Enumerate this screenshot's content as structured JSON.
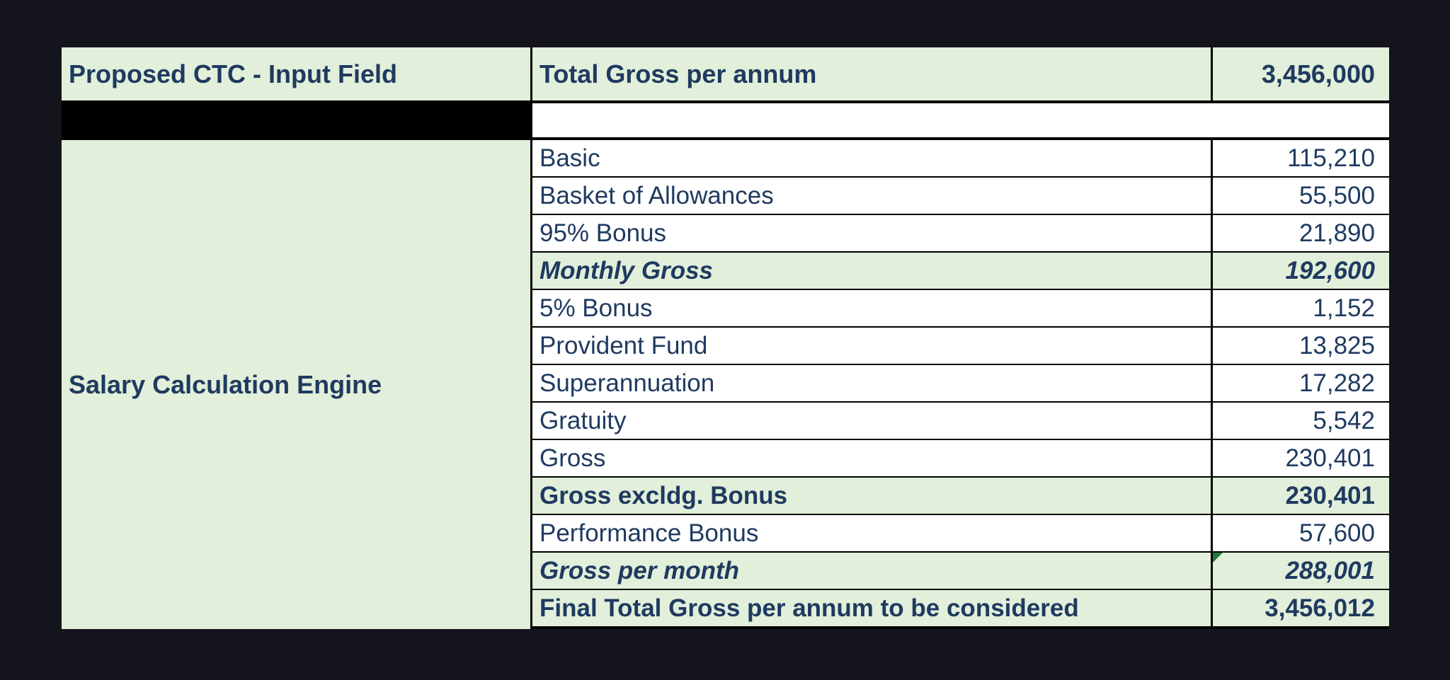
{
  "input": {
    "label": "Proposed CTC - Input Field",
    "field_label": "Total Gross per annum",
    "field_value": "3,456,000"
  },
  "engine": {
    "label": "Salary Calculation Engine",
    "rows": [
      {
        "label": "Basic",
        "value": "115,210",
        "style": "normal"
      },
      {
        "label": "Basket of Allowances",
        "value": "55,500",
        "style": "normal"
      },
      {
        "label": "95% Bonus",
        "value": "21,890",
        "style": "normal"
      },
      {
        "label": "Monthly Gross",
        "value": "192,600",
        "style": "bold-italic"
      },
      {
        "label": "5% Bonus",
        "value": "1,152",
        "style": "normal"
      },
      {
        "label": "Provident Fund",
        "value": "13,825",
        "style": "normal"
      },
      {
        "label": "Superannuation",
        "value": "17,282",
        "style": "normal"
      },
      {
        "label": "Gratuity",
        "value": "5,542",
        "style": "normal"
      },
      {
        "label": "Gross",
        "value": "230,401",
        "style": "normal"
      },
      {
        "label": "Gross excldg. Bonus",
        "value": "230,401",
        "style": "bold"
      },
      {
        "label": "Performance Bonus",
        "value": "57,600",
        "style": "normal"
      },
      {
        "label": "Gross per month",
        "value": "288,001",
        "style": "bold-italic"
      },
      {
        "label": "Final Total Gross per annum to be considered",
        "value": "3,456,012",
        "style": "bold"
      }
    ]
  },
  "colors": {
    "highlight_fill": "#e2efda",
    "plain_fill": "#ffffff",
    "text": "#1f3a60",
    "grid": "#000000",
    "page_background": "#13141c"
  }
}
